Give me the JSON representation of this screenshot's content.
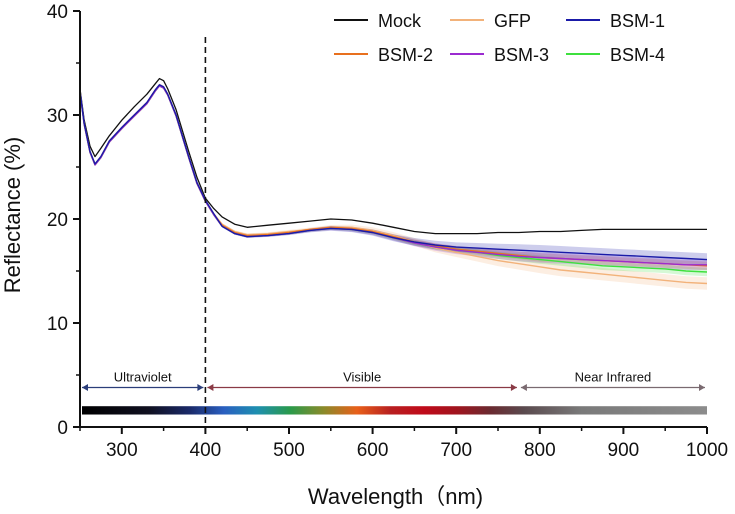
{
  "chart_data": {
    "type": "line",
    "title": "",
    "xlabel": "Wavelength（nm)",
    "ylabel": "Reflectance (%)",
    "xlim": [
      250,
      1000
    ],
    "ylim": [
      0,
      40
    ],
    "xticks": [
      300,
      400,
      500,
      600,
      700,
      800,
      900,
      1000
    ],
    "yticks": [
      0,
      10,
      20,
      30,
      40
    ],
    "x": [
      250,
      255,
      262,
      268,
      275,
      285,
      300,
      315,
      330,
      340,
      345,
      350,
      355,
      365,
      380,
      390,
      400,
      410,
      420,
      435,
      450,
      475,
      500,
      525,
      550,
      575,
      600,
      625,
      650,
      675,
      700,
      725,
      750,
      775,
      800,
      825,
      850,
      875,
      900,
      925,
      950,
      975,
      1000
    ],
    "series": [
      {
        "name": "Mock",
        "color": "#111111",
        "band": 0,
        "values": [
          32.5,
          29.5,
          27.0,
          26.0,
          26.8,
          28.0,
          29.5,
          30.8,
          32.0,
          33.0,
          33.5,
          33.3,
          32.5,
          30.5,
          26.5,
          24.0,
          22.0,
          21.0,
          20.2,
          19.5,
          19.2,
          19.4,
          19.6,
          19.8,
          20.0,
          19.9,
          19.6,
          19.2,
          18.8,
          18.6,
          18.6,
          18.6,
          18.7,
          18.7,
          18.8,
          18.8,
          18.9,
          19.0,
          19.0,
          19.0,
          19.0,
          19.0,
          19.0
        ]
      },
      {
        "name": "GFP",
        "color": "#f2b27a",
        "band": 0.6,
        "values": [
          32.3,
          29.2,
          26.5,
          25.3,
          26.0,
          27.5,
          28.8,
          30.0,
          31.2,
          32.4,
          32.9,
          32.7,
          32.0,
          30.0,
          26.0,
          23.5,
          21.8,
          20.5,
          19.5,
          18.8,
          18.5,
          18.6,
          18.8,
          19.0,
          19.2,
          19.2,
          18.9,
          18.4,
          17.8,
          17.2,
          16.8,
          16.4,
          16.0,
          15.7,
          15.4,
          15.1,
          14.9,
          14.7,
          14.5,
          14.3,
          14.1,
          13.9,
          13.8
        ]
      },
      {
        "name": "BSM-1",
        "color": "#1a1aa8",
        "band": 0.6,
        "values": [
          32.3,
          29.2,
          26.5,
          25.3,
          26.0,
          27.5,
          28.8,
          30.0,
          31.2,
          32.4,
          32.9,
          32.7,
          32.0,
          30.0,
          26.0,
          23.5,
          21.8,
          20.5,
          19.3,
          18.6,
          18.3,
          18.4,
          18.6,
          18.9,
          19.1,
          19.0,
          18.7,
          18.2,
          17.8,
          17.5,
          17.3,
          17.2,
          17.1,
          17.0,
          16.9,
          16.8,
          16.7,
          16.6,
          16.5,
          16.4,
          16.3,
          16.2,
          16.1
        ]
      },
      {
        "name": "BSM-2",
        "color": "#e8701e",
        "band": 0.4,
        "values": [
          32.2,
          29.1,
          26.4,
          25.2,
          25.9,
          27.4,
          28.7,
          29.9,
          31.1,
          32.3,
          32.8,
          32.6,
          31.9,
          29.9,
          25.9,
          23.4,
          21.7,
          20.4,
          19.4,
          18.7,
          18.4,
          18.5,
          18.7,
          19.0,
          19.2,
          19.1,
          18.8,
          18.3,
          17.8,
          17.4,
          17.1,
          16.9,
          16.7,
          16.5,
          16.3,
          16.2,
          16.1,
          16.0,
          15.9,
          15.8,
          15.7,
          15.6,
          15.5
        ]
      },
      {
        "name": "BSM-3",
        "color": "#9b2bd0",
        "band": 0.5,
        "values": [
          32.2,
          29.1,
          26.4,
          25.2,
          25.9,
          27.4,
          28.7,
          29.9,
          31.1,
          32.3,
          32.8,
          32.6,
          31.9,
          29.9,
          25.9,
          23.4,
          21.7,
          20.4,
          19.3,
          18.6,
          18.3,
          18.4,
          18.6,
          18.9,
          19.1,
          19.0,
          18.7,
          18.2,
          17.7,
          17.3,
          17.0,
          16.8,
          16.6,
          16.4,
          16.3,
          16.2,
          16.1,
          16.0,
          15.9,
          15.8,
          15.7,
          15.6,
          15.6
        ]
      },
      {
        "name": "BSM-4",
        "color": "#3ee03e",
        "band": 0.4,
        "values": [
          32.2,
          29.1,
          26.4,
          25.2,
          25.9,
          27.4,
          28.7,
          29.9,
          31.1,
          32.3,
          32.8,
          32.6,
          31.9,
          29.9,
          25.9,
          23.4,
          21.7,
          20.4,
          19.3,
          18.6,
          18.3,
          18.4,
          18.6,
          18.9,
          19.1,
          19.0,
          18.7,
          18.2,
          17.7,
          17.3,
          17.0,
          16.8,
          16.5,
          16.3,
          16.1,
          15.9,
          15.7,
          15.5,
          15.4,
          15.3,
          15.2,
          15.0,
          14.9
        ]
      }
    ],
    "divider": {
      "x": 400,
      "style": "dashed"
    },
    "regions": [
      {
        "label": "Ultraviolet",
        "from": 250,
        "to": 400,
        "color": "#2b3e7a"
      },
      {
        "label": "Visible",
        "from": 400,
        "to": 775,
        "color": "#8a3a45"
      },
      {
        "label": "Near Infrared",
        "from": 775,
        "to": 1000,
        "color": "#7a6a70"
      }
    ],
    "region_arrow_y": 3.8,
    "spectrum_bar": {
      "y_from": 1.2,
      "y_to": 2.0,
      "stops": [
        {
          "x": 250,
          "color": "#000000"
        },
        {
          "x": 330,
          "color": "#101020"
        },
        {
          "x": 380,
          "color": "#1a2a6a"
        },
        {
          "x": 420,
          "color": "#2a5fc0"
        },
        {
          "x": 460,
          "color": "#1e8fb0"
        },
        {
          "x": 500,
          "color": "#2a9a4a"
        },
        {
          "x": 540,
          "color": "#8a8a2a"
        },
        {
          "x": 580,
          "color": "#e8601a"
        },
        {
          "x": 620,
          "color": "#b82020"
        },
        {
          "x": 660,
          "color": "#c00a1a"
        },
        {
          "x": 700,
          "color": "#a0141e"
        },
        {
          "x": 740,
          "color": "#6a2a30"
        },
        {
          "x": 780,
          "color": "#5a4a4e"
        },
        {
          "x": 850,
          "color": "#7a7a7a"
        },
        {
          "x": 1000,
          "color": "#8c8c8c"
        }
      ]
    },
    "legend": {
      "position": "top-right",
      "columns": 3
    }
  }
}
